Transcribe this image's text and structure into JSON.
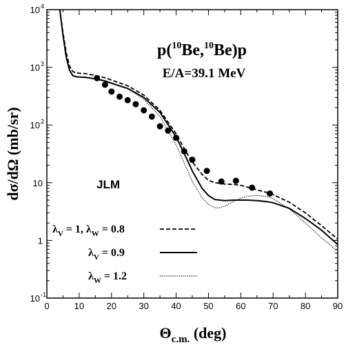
{
  "chart_data": {
    "type": "line",
    "title": {
      "prefix": "p(",
      "mass1": "10",
      "mid": "Be,",
      "mass2": "10",
      "suffix": "Be)p"
    },
    "subtitle": "E/A=39.1 MeV",
    "annotation": "JLM",
    "xlabel": {
      "main": "Θ",
      "sub": "c.m.",
      "rest": " (deg)"
    },
    "ylabel": "dσ/dΩ (mb/sr)",
    "xlim": [
      0,
      90
    ],
    "ylim_log10": [
      -1,
      4
    ],
    "yscale": "log",
    "x_ticks": [
      0,
      10,
      20,
      30,
      40,
      50,
      60,
      70,
      80,
      90
    ],
    "y_ticks": [
      {
        "value": 10000,
        "base": "10",
        "exp": "4"
      },
      {
        "value": 1000,
        "base": "10",
        "exp": "3"
      },
      {
        "value": 100,
        "base": "10",
        "exp": "2"
      },
      {
        "value": 10,
        "base": "10",
        "exp": ""
      },
      {
        "value": 1,
        "base": "1",
        "exp": ""
      },
      {
        "value": 0.1,
        "base": "10",
        "exp": "-1"
      }
    ],
    "legend": {
      "placement": "bottom-left",
      "entries": [
        {
          "series": 0,
          "parts": [
            {
              "t": "λ"
            },
            {
              "t": "V",
              "sub": true
            },
            {
              "t": " = 1, λ"
            },
            {
              "t": "W",
              "sub": true
            },
            {
              "t": " = 0.8"
            }
          ]
        },
        {
          "series": 1,
          "parts": [
            {
              "t": "λ"
            },
            {
              "t": "V",
              "sub": true
            },
            {
              "t": " = 0.9"
            }
          ]
        },
        {
          "series": 2,
          "parts": [
            {
              "t": "λ"
            },
            {
              "t": "W",
              "sub": true
            },
            {
              "t": " = 1.2"
            }
          ]
        }
      ]
    },
    "series": [
      {
        "style": "dashed",
        "x": [
          4,
          5,
          6,
          7,
          8,
          9,
          10,
          12,
          15,
          18,
          20,
          25,
          30,
          35,
          40,
          43,
          45,
          48,
          50,
          52,
          55,
          58,
          60,
          62,
          65,
          68,
          70,
          75,
          80,
          85,
          90
        ],
        "y": [
          10000,
          4000,
          1800,
          1050,
          850,
          800,
          790,
          780,
          720,
          660,
          600,
          480,
          330,
          180,
          70,
          35,
          23,
          14,
          11,
          10,
          9.5,
          9.3,
          9.0,
          8.4,
          7.5,
          6.8,
          6.2,
          4.6,
          3.0,
          1.8,
          1.05
        ]
      },
      {
        "style": "solid",
        "x": [
          4,
          5,
          6,
          7,
          8,
          9,
          10,
          12,
          15,
          18,
          20,
          25,
          30,
          35,
          40,
          43,
          45,
          48,
          50,
          52,
          55,
          58,
          60,
          62,
          65,
          68,
          70,
          75,
          80,
          85,
          90
        ],
        "y": [
          10000,
          3600,
          1500,
          900,
          720,
          690,
          680,
          670,
          630,
          580,
          530,
          430,
          300,
          165,
          62,
          28,
          16,
          8.0,
          6.0,
          5.1,
          4.9,
          5.0,
          5.0,
          5.0,
          4.9,
          4.7,
          4.5,
          3.6,
          2.4,
          1.5,
          0.85
        ]
      },
      {
        "style": "dotted",
        "x": [
          4,
          5,
          6,
          7,
          8,
          9,
          10,
          12,
          15,
          18,
          20,
          25,
          30,
          35,
          40,
          43,
          45,
          48,
          50,
          52,
          53,
          55,
          58,
          60,
          62,
          65,
          68,
          70,
          75,
          80,
          85,
          90
        ],
        "y": [
          10000,
          3600,
          1500,
          900,
          720,
          690,
          680,
          670,
          640,
          590,
          540,
          430,
          280,
          140,
          45,
          19,
          10.5,
          5.5,
          4.2,
          3.7,
          3.65,
          3.9,
          4.8,
          5.4,
          5.8,
          6.0,
          5.8,
          5.3,
          3.5,
          2.0,
          1.1,
          0.65
        ]
      }
    ],
    "points": {
      "x": [
        15.5,
        18,
        20,
        22.5,
        25,
        27.5,
        30,
        32.5,
        35,
        37.5,
        40,
        42.5,
        45,
        49.5,
        54,
        58.5,
        63.5,
        69
      ],
      "y": [
        650,
        500,
        380,
        310,
        270,
        230,
        180,
        140,
        95,
        80,
        60,
        35,
        25,
        16,
        10.5,
        10.8,
        8.2,
        6.5
      ]
    }
  }
}
